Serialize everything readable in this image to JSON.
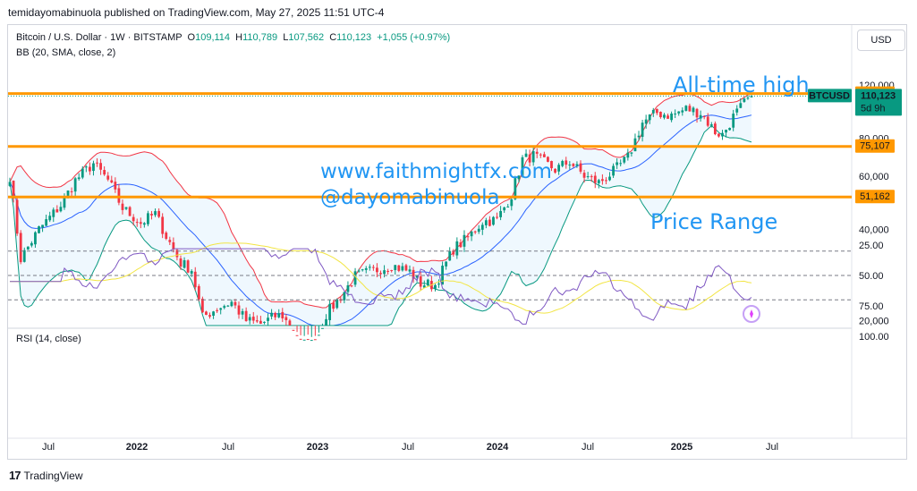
{
  "header": {
    "published": "temidayomabinuola published on TradingView.com, May 27, 2025 11:51 UTC-4"
  },
  "symbol_legend": {
    "title": "Bitcoin / U.S. Dollar · 1W · BITSTAMP",
    "open_label": "O",
    "open": "109,114",
    "high_label": "H",
    "high": "110,789",
    "low_label": "L",
    "low": "107,562",
    "close_label": "C",
    "close": "110,123",
    "change": "+1,055 (+0.97%)"
  },
  "bb_legend": "BB (20, SMA, close, 2)",
  "rsi_legend": "RSI (14, close)",
  "currency_button": "USD",
  "footer": {
    "logo_text": "17",
    "brand": "TradingView"
  },
  "annotations": {
    "all_time_high": "All-time high",
    "website": "www.faithmightfx.com",
    "handle": "@dayomabinuola",
    "price_range": "Price Range"
  },
  "price_tags": {
    "ath_level": "112,236",
    "symbol": "BTCUSD",
    "last_price": "110,123",
    "countdown": "5d 9h",
    "range_top": "75,107",
    "range_bottom": "51,162"
  },
  "colors": {
    "up": "#089981",
    "down": "#f23645",
    "bb_upper": "#f23645",
    "bb_basis": "#2962ff",
    "bb_lower": "#089981",
    "bb_fill": "#2196f3",
    "level_line": "#ff9800",
    "rsi_line": "#7e57c2",
    "rsi_ma": "#f2e543",
    "annotation": "#2196f3"
  },
  "chart_data": [
    {
      "type": "candlestick",
      "title": "Bitcoin / U.S. Dollar · 1W · BITSTAMP",
      "x_ticks": [
        "Jul",
        "2022",
        "Jul",
        "2023",
        "Jul",
        "2024",
        "Jul",
        "2025",
        "Jul"
      ],
      "y_ticks": [
        "120,000",
        "100,000",
        "80,000",
        "60,000",
        "40,000",
        "20,000"
      ],
      "y_scale": "log",
      "ylim": [
        19000,
        130000
      ],
      "horizontal_levels": [
        112236,
        75107,
        51162
      ],
      "last_close": 110123,
      "price_path_anchors": [
        {
          "t": 0,
          "p": 60000
        },
        {
          "t": 3,
          "p": 32000
        },
        {
          "t": 8,
          "p": 40000
        },
        {
          "t": 14,
          "p": 48000
        },
        {
          "t": 18,
          "p": 58000
        },
        {
          "t": 23,
          "p": 66000
        },
        {
          "t": 27,
          "p": 58000
        },
        {
          "t": 31,
          "p": 47000
        },
        {
          "t": 36,
          "p": 42000
        },
        {
          "t": 40,
          "p": 45000
        },
        {
          "t": 43,
          "p": 38000
        },
        {
          "t": 47,
          "p": 31000
        },
        {
          "t": 50,
          "p": 29500
        },
        {
          "t": 53,
          "p": 20500
        },
        {
          "t": 57,
          "p": 22000
        },
        {
          "t": 61,
          "p": 23000
        },
        {
          "t": 65,
          "p": 20000
        },
        {
          "t": 69,
          "p": 19500
        },
        {
          "t": 73,
          "p": 20700
        },
        {
          "t": 75,
          "p": 20800
        },
        {
          "t": 80,
          "p": 16700
        },
        {
          "t": 84,
          "p": 16800
        },
        {
          "t": 87,
          "p": 21000
        },
        {
          "t": 91,
          "p": 24000
        },
        {
          "t": 95,
          "p": 28000
        },
        {
          "t": 99,
          "p": 29000
        },
        {
          "t": 105,
          "p": 30500
        },
        {
          "t": 110,
          "p": 29000
        },
        {
          "t": 113,
          "p": 26500
        },
        {
          "t": 117,
          "p": 26200
        },
        {
          "t": 122,
          "p": 34500
        },
        {
          "t": 126,
          "p": 37500
        },
        {
          "t": 130,
          "p": 42500
        },
        {
          "t": 134,
          "p": 43000
        },
        {
          "t": 138,
          "p": 52000
        },
        {
          "t": 141,
          "p": 68000
        },
        {
          "t": 144,
          "p": 70000
        },
        {
          "t": 150,
          "p": 63000
        },
        {
          "t": 154,
          "p": 67000
        },
        {
          "t": 158,
          "p": 60000
        },
        {
          "t": 162,
          "p": 57000
        },
        {
          "t": 166,
          "p": 62000
        },
        {
          "t": 170,
          "p": 69000
        },
        {
          "t": 174,
          "p": 90000
        },
        {
          "t": 178,
          "p": 97000
        },
        {
          "t": 182,
          "p": 95000
        },
        {
          "t": 186,
          "p": 100000
        },
        {
          "t": 190,
          "p": 97000
        },
        {
          "t": 194,
          "p": 84000
        },
        {
          "t": 196,
          "p": 82000
        },
        {
          "t": 199,
          "p": 94000
        },
        {
          "t": 202,
          "p": 104000
        },
        {
          "t": 204,
          "p": 110123
        }
      ]
    },
    {
      "type": "line",
      "title": "RSI (14, close)",
      "y_ticks": [
        "100.00",
        "75.00",
        "50.00",
        "25.00"
      ],
      "ylim": [
        25,
        100
      ],
      "bands": [
        70,
        50,
        30
      ],
      "last_rsi": 68
    }
  ]
}
